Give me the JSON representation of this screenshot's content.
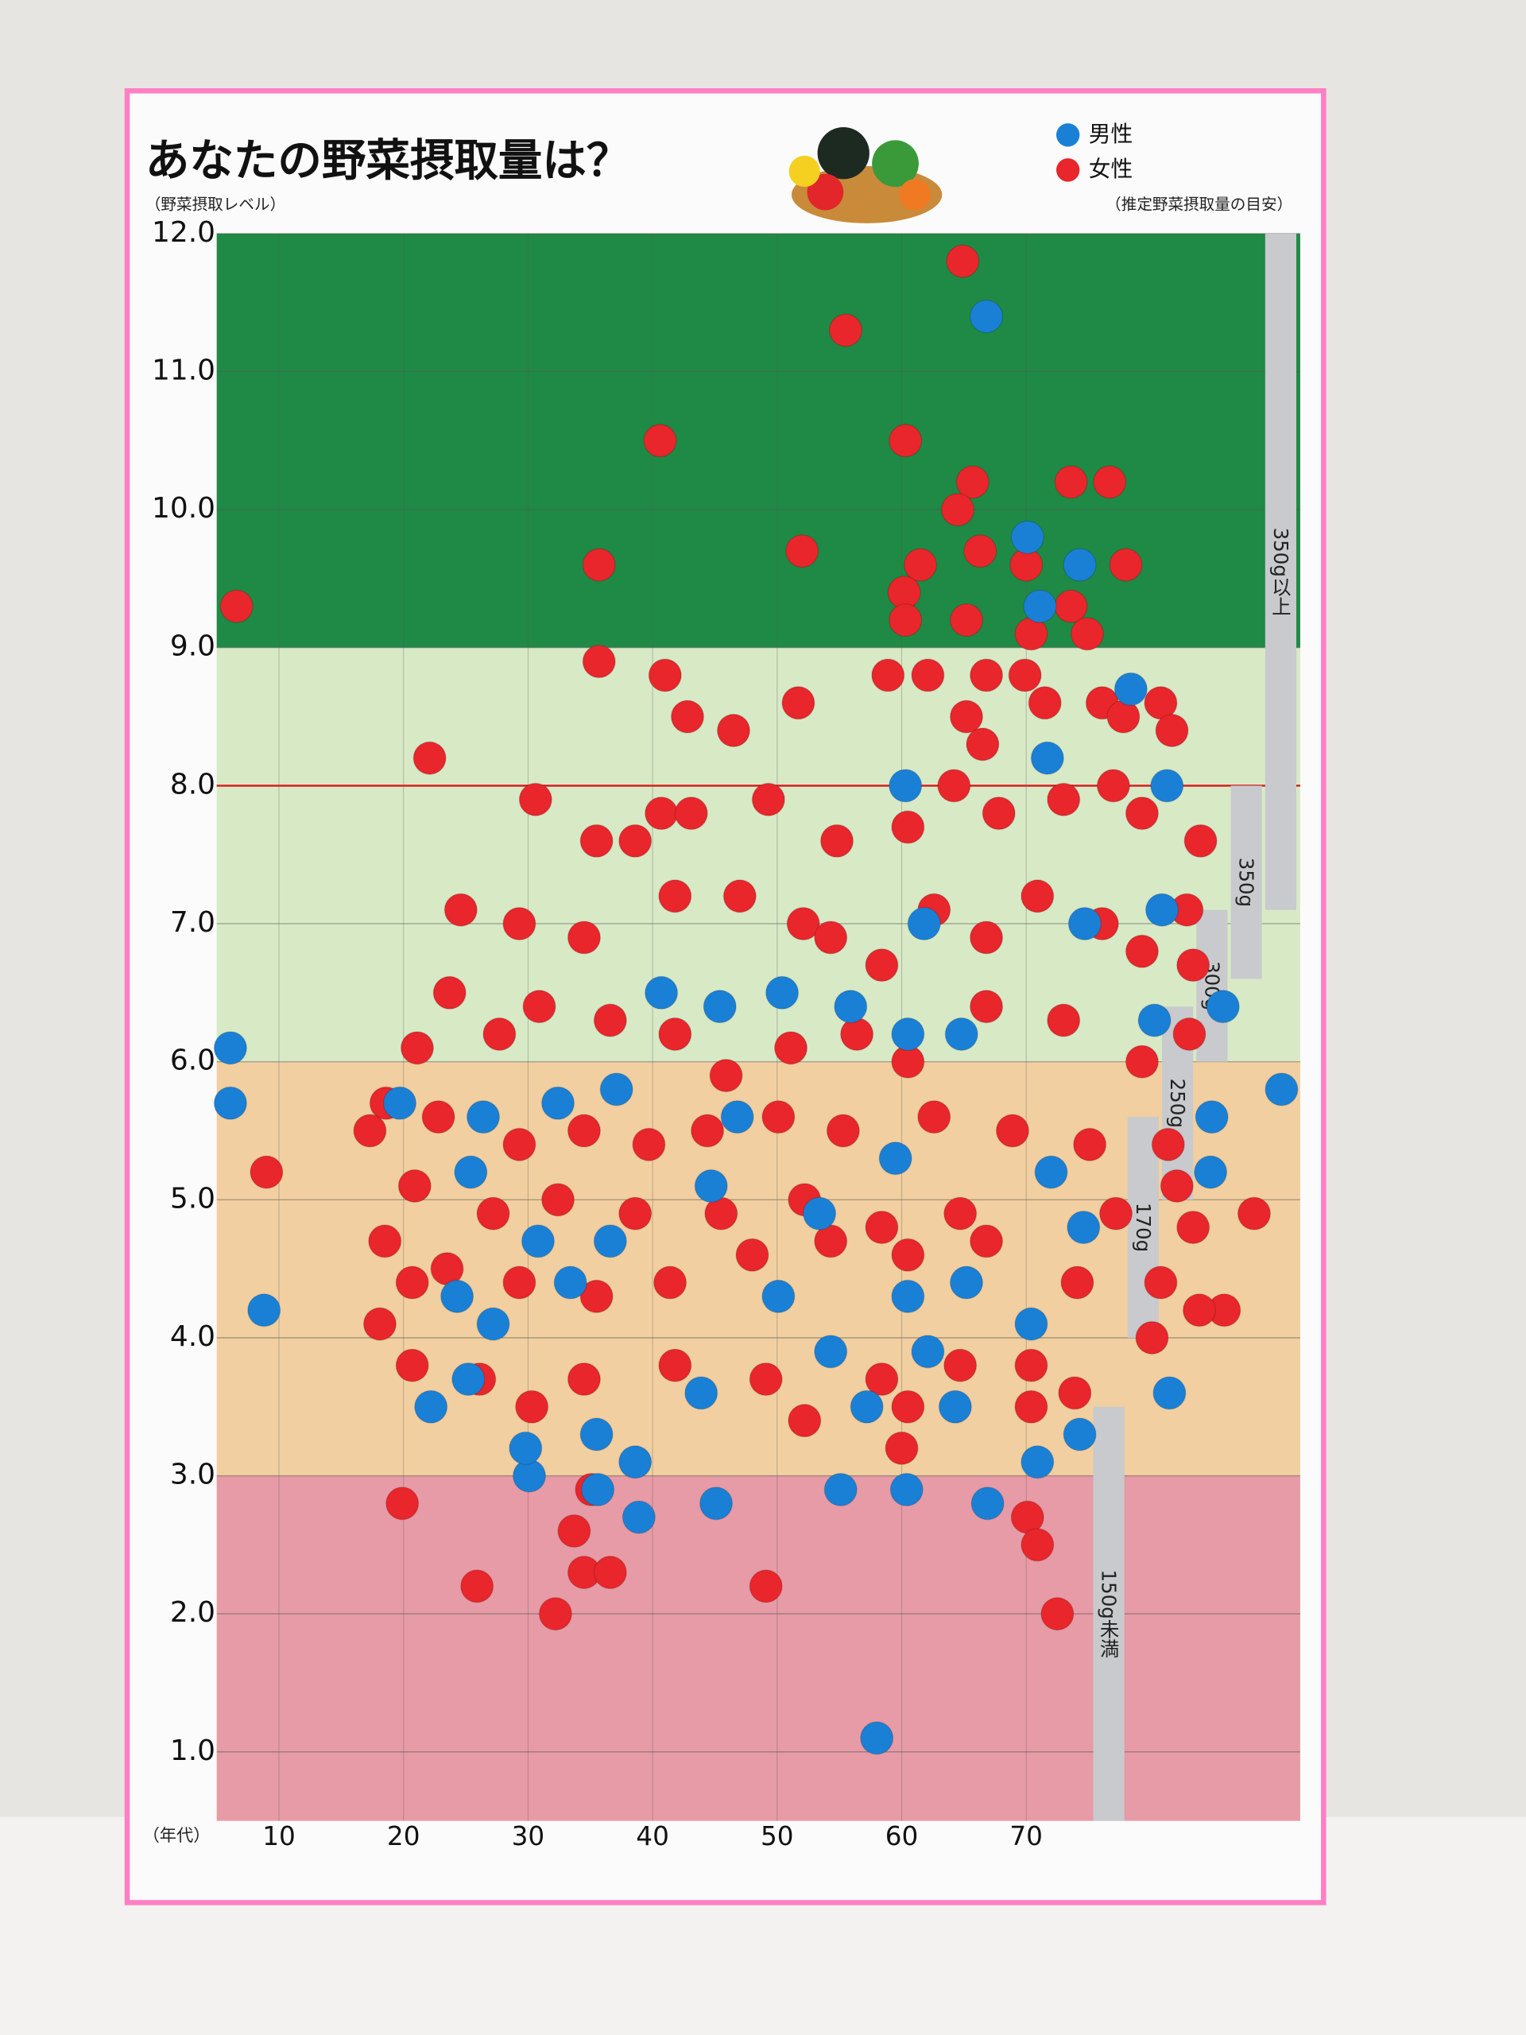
{
  "chart_data": {
    "type": "scatter",
    "title": "あなたの野菜摂取量は？",
    "y_label": "（野菜摂取レベル）",
    "x_label": "（年代）",
    "guide_title": "（推定野菜摂取量の目安）",
    "legend": "top-right",
    "grid": true,
    "xlim": [
      5,
      92
    ],
    "ylim": [
      0.5,
      12
    ],
    "xticks": [
      10,
      20,
      30,
      40,
      50,
      60,
      70
    ],
    "yticks": [
      {
        "value": 1,
        "label": "1.0"
      },
      {
        "value": 2,
        "label": "2.0"
      },
      {
        "value": 3,
        "label": "3.0"
      },
      {
        "value": 4,
        "label": "4.0"
      },
      {
        "value": 5,
        "label": "5.0"
      },
      {
        "value": 6,
        "label": "6.0"
      },
      {
        "value": 7,
        "label": "7.0"
      },
      {
        "value": 8,
        "label": "8.0"
      },
      {
        "value": 9,
        "label": "9.0"
      },
      {
        "value": 10,
        "label": "10.0"
      },
      {
        "value": 11,
        "label": "11.0"
      },
      {
        "value": 12,
        "label": "12.0"
      }
    ],
    "bands": [
      {
        "from": 9,
        "to": 12,
        "color": "#1f8a45"
      },
      {
        "from": 6,
        "to": 9,
        "color": "#d8e9c6"
      },
      {
        "from": 3,
        "to": 6,
        "color": "#f1cfa0"
      },
      {
        "from": 0.5,
        "to": 3,
        "color": "#e79ba6"
      }
    ],
    "hline": {
      "value": 8,
      "color": "#d62020"
    },
    "guide": [
      {
        "label": "350g以上",
        "from": 7.1,
        "to": 12
      },
      {
        "label": "350g",
        "from": 6.6,
        "to": 8
      },
      {
        "label": "300g",
        "from": 6.0,
        "to": 7.1
      },
      {
        "label": "250g",
        "from": 5.0,
        "to": 6.4
      },
      {
        "label": "170g",
        "from": 4.0,
        "to": 5.6
      },
      {
        "label": "150g未満",
        "from": 0.5,
        "to": 3.5
      }
    ],
    "series": [
      {
        "name": "男性",
        "color": "#1a80d6",
        "x": [
          6.1,
          6.1,
          8.8,
          66.8,
          70.1,
          74.3,
          71.1,
          78.4,
          81.3,
          85.8,
          90.5,
          84.8,
          81.5,
          74.3,
          70.9,
          66.9,
          58,
          60.4,
          55.1,
          45.1,
          38.9,
          35.6,
          30.1,
          29.8,
          22.2,
          25.2,
          24.3,
          27.2,
          25.4,
          26.4,
          19.7,
          30.8,
          33.4,
          36.6,
          35.5,
          38.6,
          43.9,
          50.1,
          54.3,
          57.2,
          60.5,
          62.1,
          64.3,
          65.2,
          70.4,
          72,
          74.6,
          64.8,
          59.5,
          61.8,
          50.4,
          55.9,
          46.8,
          45.4,
          40.7,
          37.1,
          32.4,
          53.4,
          60.5,
          60.3,
          71.7,
          74.7,
          80.3,
          80.9,
          84.9,
          44.7
        ],
        "values": [
          6.1,
          5.7,
          4.2,
          11.4,
          9.8,
          9.6,
          9.3,
          8.7,
          8,
          6.4,
          5.8,
          5.2,
          3.6,
          3.3,
          3.1,
          2.8,
          1.1,
          2.9,
          2.9,
          2.8,
          2.7,
          2.9,
          3,
          3.2,
          3.5,
          3.7,
          4.3,
          4.1,
          5.2,
          5.6,
          5.7,
          4.7,
          4.4,
          4.7,
          3.3,
          3.1,
          3.6,
          4.3,
          3.9,
          3.5,
          4.3,
          3.9,
          3.5,
          4.4,
          4.1,
          5.2,
          4.8,
          6.2,
          5.3,
          7,
          6.5,
          6.4,
          5.6,
          6.4,
          6.5,
          5.8,
          5.7,
          4.9,
          6.2,
          8,
          8.2,
          7,
          6.3,
          7.1,
          5.6,
          5.1
        ]
      },
      {
        "name": "女性",
        "color": "#e8262b",
        "x": [
          64.9,
          55.5,
          40.6,
          60.3,
          65.7,
          64.5,
          73.6,
          76.7,
          78,
          66.3,
          61.5,
          60.2,
          52,
          35.7,
          6.6,
          65.2,
          60.3,
          73.6,
          70,
          70.4,
          74.9,
          35.7,
          41,
          42.8,
          46.5,
          51.7,
          58.9,
          62.1,
          65.2,
          66.5,
          66.8,
          69.9,
          71.5,
          76.1,
          77.8,
          80.8,
          81.7,
          22.1,
          30.6,
          40.7,
          43.1,
          49.3,
          54.8,
          60.5,
          64.2,
          67.8,
          73,
          77,
          79.3,
          84,
          35.5,
          38.6,
          24.6,
          29.3,
          34.5,
          41.8,
          47,
          52.1,
          54.3,
          58.4,
          62.6,
          66.8,
          70.9,
          76.1,
          79.3,
          82.9,
          83.4,
          23.7,
          21.1,
          27.7,
          30.9,
          36.6,
          41.8,
          45.9,
          51.1,
          56.4,
          60.5,
          66.8,
          73,
          79.3,
          83.1,
          18.6,
          17.3,
          22.8,
          29.3,
          34.5,
          39.7,
          44.4,
          50.1,
          55.3,
          62.6,
          68.9,
          75.1,
          81.4,
          9,
          20.9,
          27.2,
          32.4,
          38.6,
          45.5,
          52.2,
          58.4,
          64.7,
          77.2,
          82.1,
          88.3,
          83.4,
          18.5,
          20.7,
          23.5,
          29.3,
          35.5,
          41.4,
          48,
          54.3,
          60.5,
          66.8,
          74.1,
          80.8,
          85.9,
          83.9,
          80.1,
          18.1,
          20.7,
          26.1,
          30.3,
          34.5,
          41.8,
          49.1,
          52.2,
          58.4,
          64.7,
          70.4,
          73.9,
          60.5,
          60,
          19.9,
          33.7,
          35.1,
          25.9,
          34.5,
          36.6,
          32.2,
          49.1,
          70.1,
          70.9,
          72.5,
          70.4
        ],
        "values": [
          11.8,
          11.3,
          10.5,
          10.5,
          10.2,
          10,
          10.2,
          10.2,
          9.6,
          9.7,
          9.6,
          9.4,
          9.7,
          9.6,
          9.3,
          9.2,
          9.2,
          9.3,
          9.6,
          9.1,
          9.1,
          8.9,
          8.8,
          8.5,
          8.4,
          8.6,
          8.8,
          8.8,
          8.5,
          8.3,
          8.8,
          8.8,
          8.6,
          8.6,
          8.5,
          8.6,
          8.4,
          8.2,
          7.9,
          7.8,
          7.8,
          7.9,
          7.6,
          7.7,
          8,
          7.8,
          7.9,
          8,
          7.8,
          7.6,
          7.6,
          7.6,
          7.1,
          7,
          6.9,
          7.2,
          7.2,
          7,
          6.9,
          6.7,
          7.1,
          6.9,
          7.2,
          7,
          6.8,
          7.1,
          6.7,
          6.5,
          6.1,
          6.2,
          6.4,
          6.3,
          6.2,
          5.9,
          6.1,
          6.2,
          6,
          6.4,
          6.3,
          6,
          6.2,
          5.7,
          5.5,
          5.6,
          5.4,
          5.5,
          5.4,
          5.5,
          5.6,
          5.5,
          5.6,
          5.5,
          5.4,
          5.4,
          5.2,
          5.1,
          4.9,
          5,
          4.9,
          4.9,
          5,
          4.8,
          4.9,
          4.9,
          5.1,
          4.9,
          4.8,
          4.7,
          4.4,
          4.5,
          4.4,
          4.3,
          4.4,
          4.6,
          4.7,
          4.6,
          4.7,
          4.4,
          4.4,
          4.2,
          4.2,
          4,
          4.1,
          3.8,
          3.7,
          3.5,
          3.7,
          3.8,
          3.7,
          3.4,
          3.7,
          3.8,
          3.5,
          3.6,
          3.5,
          3.2,
          2.8,
          2.6,
          2.9,
          2.2,
          2.3,
          2.3,
          2,
          2.2,
          2.7,
          2.5,
          2,
          3.8
        ]
      }
    ]
  }
}
